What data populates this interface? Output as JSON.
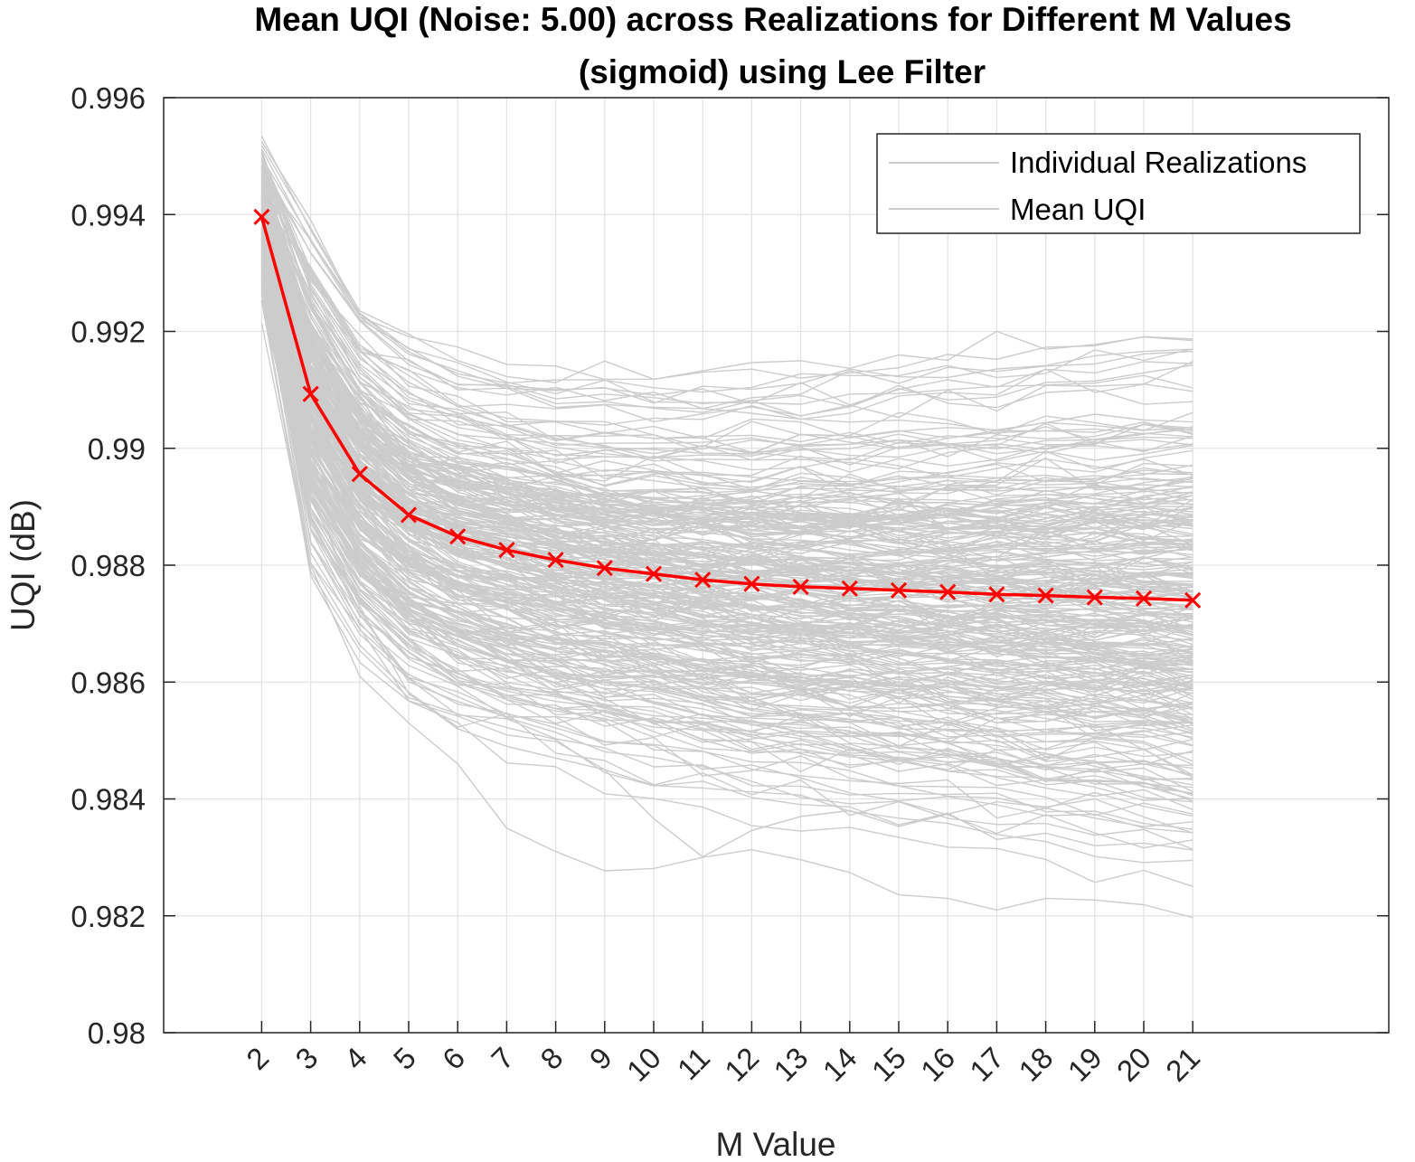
{
  "chart_data": {
    "type": "line",
    "title_lines": [
      "Mean UQI (Noise: 5.00) across Realizations for Different M Values",
      "(sigmoid) using Lee Filter"
    ],
    "xlabel": "M Value",
    "ylabel": "UQI (dB)",
    "x": [
      2,
      3,
      4,
      5,
      6,
      7,
      8,
      9,
      10,
      11,
      12,
      13,
      14,
      15,
      16,
      17,
      18,
      19,
      20,
      21
    ],
    "xlim": [
      0,
      25
    ],
    "ylim": [
      0.98,
      0.996
    ],
    "yticks": [
      0.98,
      0.982,
      0.984,
      0.986,
      0.988,
      0.99,
      0.992,
      0.994,
      0.996
    ],
    "ytick_labels": [
      "0.98",
      "0.982",
      "0.984",
      "0.986",
      "0.988",
      "0.99",
      "0.992",
      "0.994",
      "0.996"
    ],
    "xtick_labels": [
      "2",
      "3",
      "4",
      "5",
      "6",
      "7",
      "8",
      "9",
      "10",
      "11",
      "12",
      "13",
      "14",
      "15",
      "16",
      "17",
      "18",
      "19",
      "20",
      "21"
    ],
    "grid": true,
    "legend": {
      "placement": "top-right",
      "entries": [
        "Individual Realizations",
        "Mean UQI"
      ]
    },
    "series": [
      {
        "name": "Mean UQI",
        "color": "#ff0000",
        "marker": "x",
        "values": [
          0.99396,
          0.99093,
          0.98956,
          0.98886,
          0.98849,
          0.98826,
          0.98809,
          0.98795,
          0.98785,
          0.98775,
          0.98768,
          0.98763,
          0.9876,
          0.98757,
          0.98754,
          0.9875,
          0.98748,
          0.98745,
          0.98743,
          0.9874
        ]
      }
    ],
    "realizations": {
      "name": "Individual Realizations",
      "color": "#cccccc",
      "count": 300,
      "start_range": [
        0.9921,
        0.9951
      ],
      "end_range": [
        0.982,
        0.9903
      ],
      "outlier_min": [
        0.99215,
        0.988,
        0.9861,
        0.9853,
        0.9846,
        0.9835,
        0.9831,
        0.98277,
        0.98281,
        0.983,
        0.98313,
        0.98296,
        0.98274,
        0.98236,
        0.9823,
        0.9821,
        0.9823,
        0.98227,
        0.98219,
        0.98197
      ],
      "outlier_low2": [
        0.9928,
        0.9892,
        0.9873,
        0.9858,
        0.9852,
        0.9849,
        0.9847,
        0.9845,
        0.98366,
        0.98301,
        0.98346,
        0.9837,
        0.9838,
        0.98353,
        0.98374,
        0.98395,
        0.98386,
        0.984,
        0.98369,
        0.98342
      ],
      "envelope_upper": [
        0.9951,
        0.9927,
        0.99165,
        0.99152,
        0.991,
        0.99103,
        0.9907,
        0.99075,
        0.9907,
        0.99068,
        0.9906,
        0.9905,
        0.99045,
        0.99048,
        0.99042,
        0.9903,
        0.9903,
        0.99033,
        0.99025,
        0.99033
      ]
    }
  }
}
